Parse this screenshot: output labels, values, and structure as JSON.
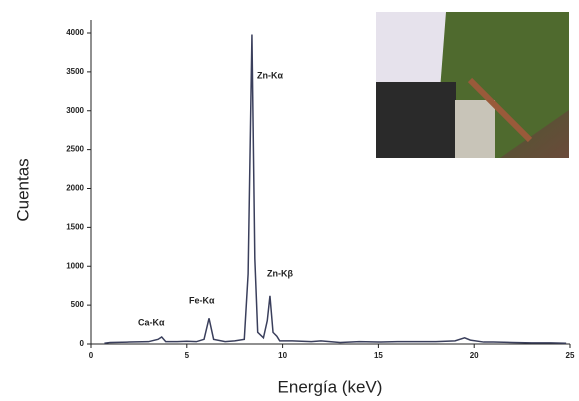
{
  "chart_data": {
    "type": "line",
    "xlabel": "Energía (keV)",
    "ylabel": "Cuentas",
    "annotations": [
      "Ca-Kα",
      "Fe-Kα",
      "Zn-Kα",
      "Zn-Kβ"
    ],
    "x": [
      0.7,
      1,
      2,
      3,
      3.5,
      3.69,
      3.9,
      4.5,
      5,
      5.5,
      5.9,
      6.16,
      6.4,
      7,
      7.5,
      8.0,
      8.2,
      8.4,
      8.55,
      8.7,
      9.0,
      9.2,
      9.34,
      9.5,
      9.7,
      9.85,
      10.5,
      11.5,
      12,
      13,
      14,
      15,
      16,
      17,
      18,
      19,
      19.5,
      19.8,
      20.5,
      21,
      22,
      23,
      24,
      24.8
    ],
    "values": [
      10,
      20,
      25,
      30,
      60,
      90,
      30,
      30,
      35,
      30,
      60,
      330,
      60,
      30,
      40,
      60,
      900,
      3980,
      1100,
      150,
      80,
      300,
      620,
      150,
      100,
      40,
      40,
      30,
      40,
      20,
      30,
      25,
      30,
      30,
      30,
      40,
      80,
      50,
      25,
      25,
      20,
      15,
      15,
      10
    ],
    "color": "#3a3f5c",
    "xlim": [
      0,
      25
    ],
    "xticks": [
      0,
      5,
      10,
      15,
      20,
      25
    ],
    "ylim": [
      0,
      4000
    ],
    "yticks": [
      0,
      500,
      1000,
      1500,
      2000,
      2500,
      3000,
      3500,
      4000
    ]
  }
}
